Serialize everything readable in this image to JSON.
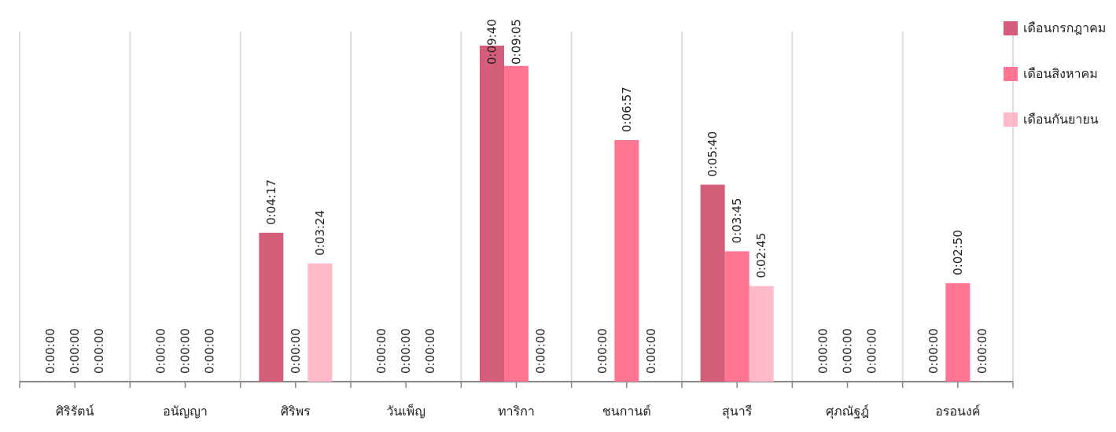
{
  "chart_data": {
    "type": "bar",
    "categories": [
      "ศิริรัตน์",
      "อนัญญา",
      "ศิริพร",
      "วันเพ็ญ",
      "ทาริกา",
      "ชนกานต์",
      "สุนารี",
      "ศุภณัฐฎ์",
      "อรอนงค์"
    ],
    "series": [
      {
        "name": "เดือนกรกฎาคม",
        "color": "#d45d79",
        "values": [
          0,
          0,
          257,
          0,
          580,
          0,
          340,
          0,
          0
        ],
        "value_labels": [
          "0:00:00",
          "0:00:00",
          "0:04:17",
          "0:00:00",
          "0:09:40",
          "0:00:00",
          "0:05:40",
          "0:00:00",
          "0:00:00"
        ]
      },
      {
        "name": "เดือนสิงหาคม",
        "color": "#ff7592",
        "values": [
          0,
          0,
          0,
          0,
          545,
          417,
          225,
          0,
          170
        ],
        "value_labels": [
          "0:00:00",
          "0:00:00",
          "0:00:00",
          "0:00:00",
          "0:09:05",
          "0:06:57",
          "0:03:45",
          "0:00:00",
          "0:02:50"
        ]
      },
      {
        "name": "เดือนกันยายน",
        "color": "#ffb9c8",
        "values": [
          0,
          0,
          204,
          0,
          0,
          0,
          165,
          0,
          0
        ],
        "value_labels": [
          "0:00:00",
          "0:00:00",
          "0:03:24",
          "0:00:00",
          "0:00:00",
          "0:00:00",
          "0:02:45",
          "0:00:00",
          "0:00:00"
        ]
      }
    ],
    "legend": "top-right"
  }
}
